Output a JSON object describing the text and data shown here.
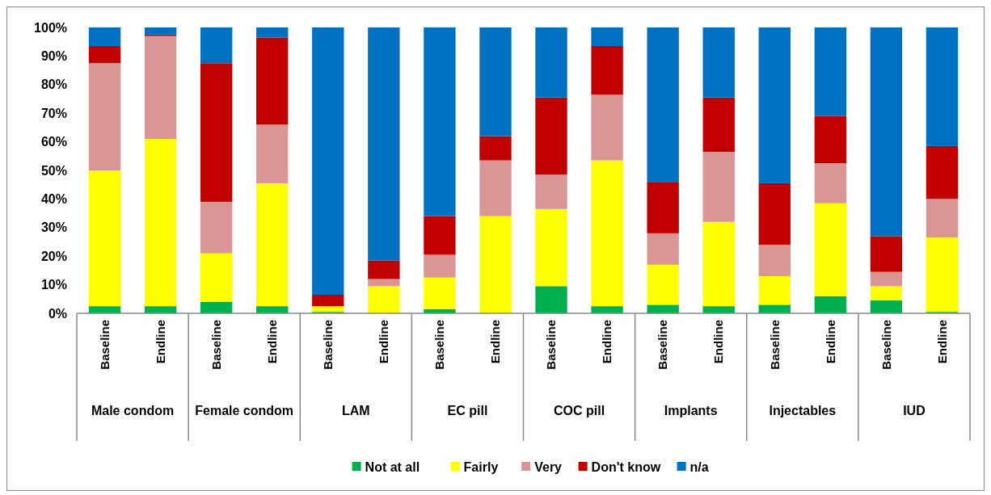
{
  "chart_data": {
    "type": "bar",
    "stacked": true,
    "categories": [
      "Baseline",
      "Endline",
      "Baseline",
      "Endline",
      "Baseline",
      "Endline",
      "Baseline",
      "Endline",
      "Baseline",
      "Endline",
      "Baseline",
      "Endline",
      "Baseline",
      "Endline",
      "Baseline",
      "Endline"
    ],
    "annotations": [
      "Male condom",
      "Female condom",
      "LAM",
      "EC pill",
      "COC pill",
      "Implants",
      "Injectables",
      "IUD"
    ],
    "series": [
      {
        "name": "Not at all",
        "color": "#00b050",
        "values": [
          2.5,
          2.5,
          4,
          2.5,
          0.5,
          0,
          1.5,
          0,
          9.5,
          2.5,
          3,
          2.5,
          3,
          6,
          4.5,
          0.5
        ]
      },
      {
        "name": "Fairly",
        "color": "#ffff00",
        "values": [
          47.5,
          58.5,
          17,
          43,
          2,
          9.5,
          11,
          34,
          27,
          51,
          14,
          29.5,
          10,
          32.5,
          5,
          26
        ]
      },
      {
        "name": "Very",
        "color": "#d99694",
        "values": [
          37.5,
          36,
          18,
          20.5,
          0,
          2.5,
          8,
          19.5,
          12,
          23,
          11,
          24.5,
          11,
          14,
          5,
          13.5
        ]
      },
      {
        "name": "Don't know",
        "color": "#c00000",
        "values": [
          6,
          0.5,
          48.5,
          30.5,
          4,
          6.5,
          13.5,
          8.5,
          27,
          17,
          18,
          19,
          21.5,
          16.5,
          12.5,
          18.5
        ]
      },
      {
        "name": "n/a",
        "color": "#0070c0",
        "values": [
          6.5,
          2.5,
          12.5,
          3.5,
          93.5,
          81.5,
          66,
          38,
          24.5,
          6.5,
          54,
          24.5,
          54.5,
          31,
          73,
          41.5
        ]
      }
    ],
    "ylim": [
      0,
      100
    ],
    "yticks": [
      {
        "value": 0,
        "label": "0%"
      },
      {
        "value": 10,
        "label": "10%"
      },
      {
        "value": 20,
        "label": "20%"
      },
      {
        "value": 30,
        "label": "30%"
      },
      {
        "value": 40,
        "label": "40%"
      },
      {
        "value": 50,
        "label": "50%"
      },
      {
        "value": 60,
        "label": "60%"
      },
      {
        "value": 70,
        "label": "70%"
      },
      {
        "value": 80,
        "label": "80%"
      },
      {
        "value": 90,
        "label": "90%"
      },
      {
        "value": 100,
        "label": "100%"
      }
    ],
    "legend": "bottom"
  }
}
